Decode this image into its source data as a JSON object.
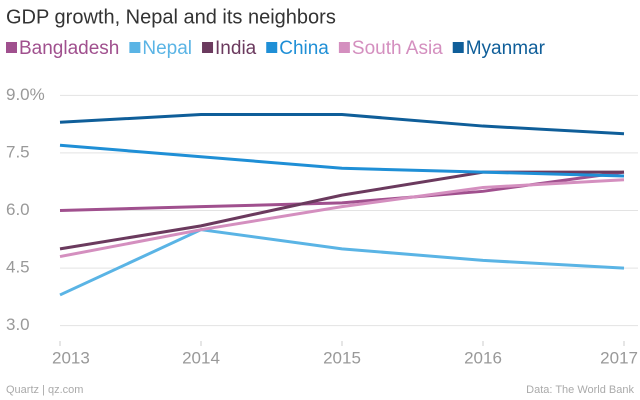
{
  "chart_data": {
    "type": "line",
    "title": "GDP growth, Nepal and its neighbors",
    "x": [
      2013,
      2014,
      2015,
      2016,
      2017
    ],
    "xlim": [
      2013,
      2017
    ],
    "xticks": [
      2013,
      2014,
      2015,
      2016,
      2017
    ],
    "ylim": [
      2.6,
      9.4
    ],
    "yticks": [
      {
        "value": 3,
        "label": "3.0"
      },
      4.5,
      {
        "value": 6,
        "label": "6.0"
      },
      7.5,
      {
        "value": 9,
        "label": "9.0%"
      }
    ],
    "grid": true,
    "series": [
      {
        "name": "Bangladesh",
        "color": "#a0508e",
        "values": [
          6.0,
          6.1,
          6.2,
          6.5,
          7.0
        ]
      },
      {
        "name": "Nepal",
        "color": "#5ab4e5",
        "values": [
          3.8,
          5.5,
          5.0,
          4.7,
          4.5
        ]
      },
      {
        "name": "India",
        "color": "#6b3a5e",
        "values": [
          5.0,
          5.6,
          6.4,
          7.0,
          7.0
        ]
      },
      {
        "name": "China",
        "color": "#1f8fd6",
        "values": [
          7.7,
          7.4,
          7.1,
          7.0,
          6.9
        ]
      },
      {
        "name": "South Asia",
        "color": "#d48fbf",
        "values": [
          4.8,
          5.5,
          6.1,
          6.6,
          6.8
        ]
      },
      {
        "name": "Myanmar",
        "color": "#0f5e99",
        "values": [
          8.3,
          8.5,
          8.5,
          8.2,
          8.0
        ]
      }
    ],
    "source": "Data: The World Bank",
    "credit": "Quartz | qz.com"
  }
}
